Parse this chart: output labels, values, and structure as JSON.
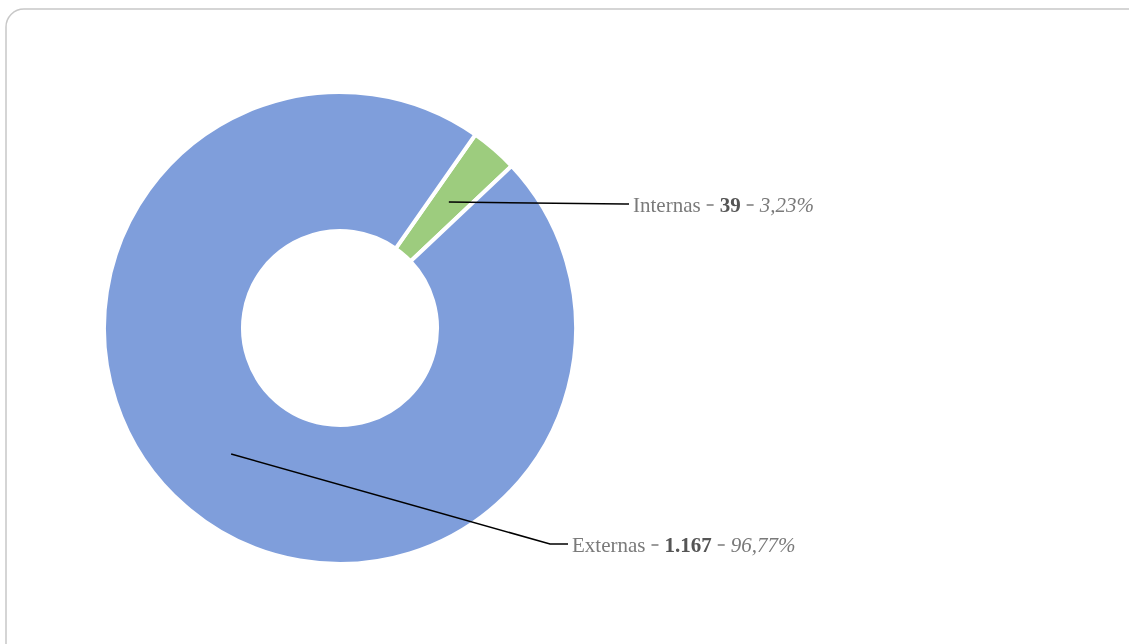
{
  "chart_data": {
    "type": "donut",
    "categories": [
      "Internas",
      "Externas"
    ],
    "values": [
      39,
      1167
    ],
    "colors": [
      "#9dcc7e",
      "#7f9edb"
    ],
    "value_labels": [
      "39",
      "1.167"
    ],
    "annotations": [
      "3,23%",
      "96,77%"
    ],
    "legend": false
  }
}
